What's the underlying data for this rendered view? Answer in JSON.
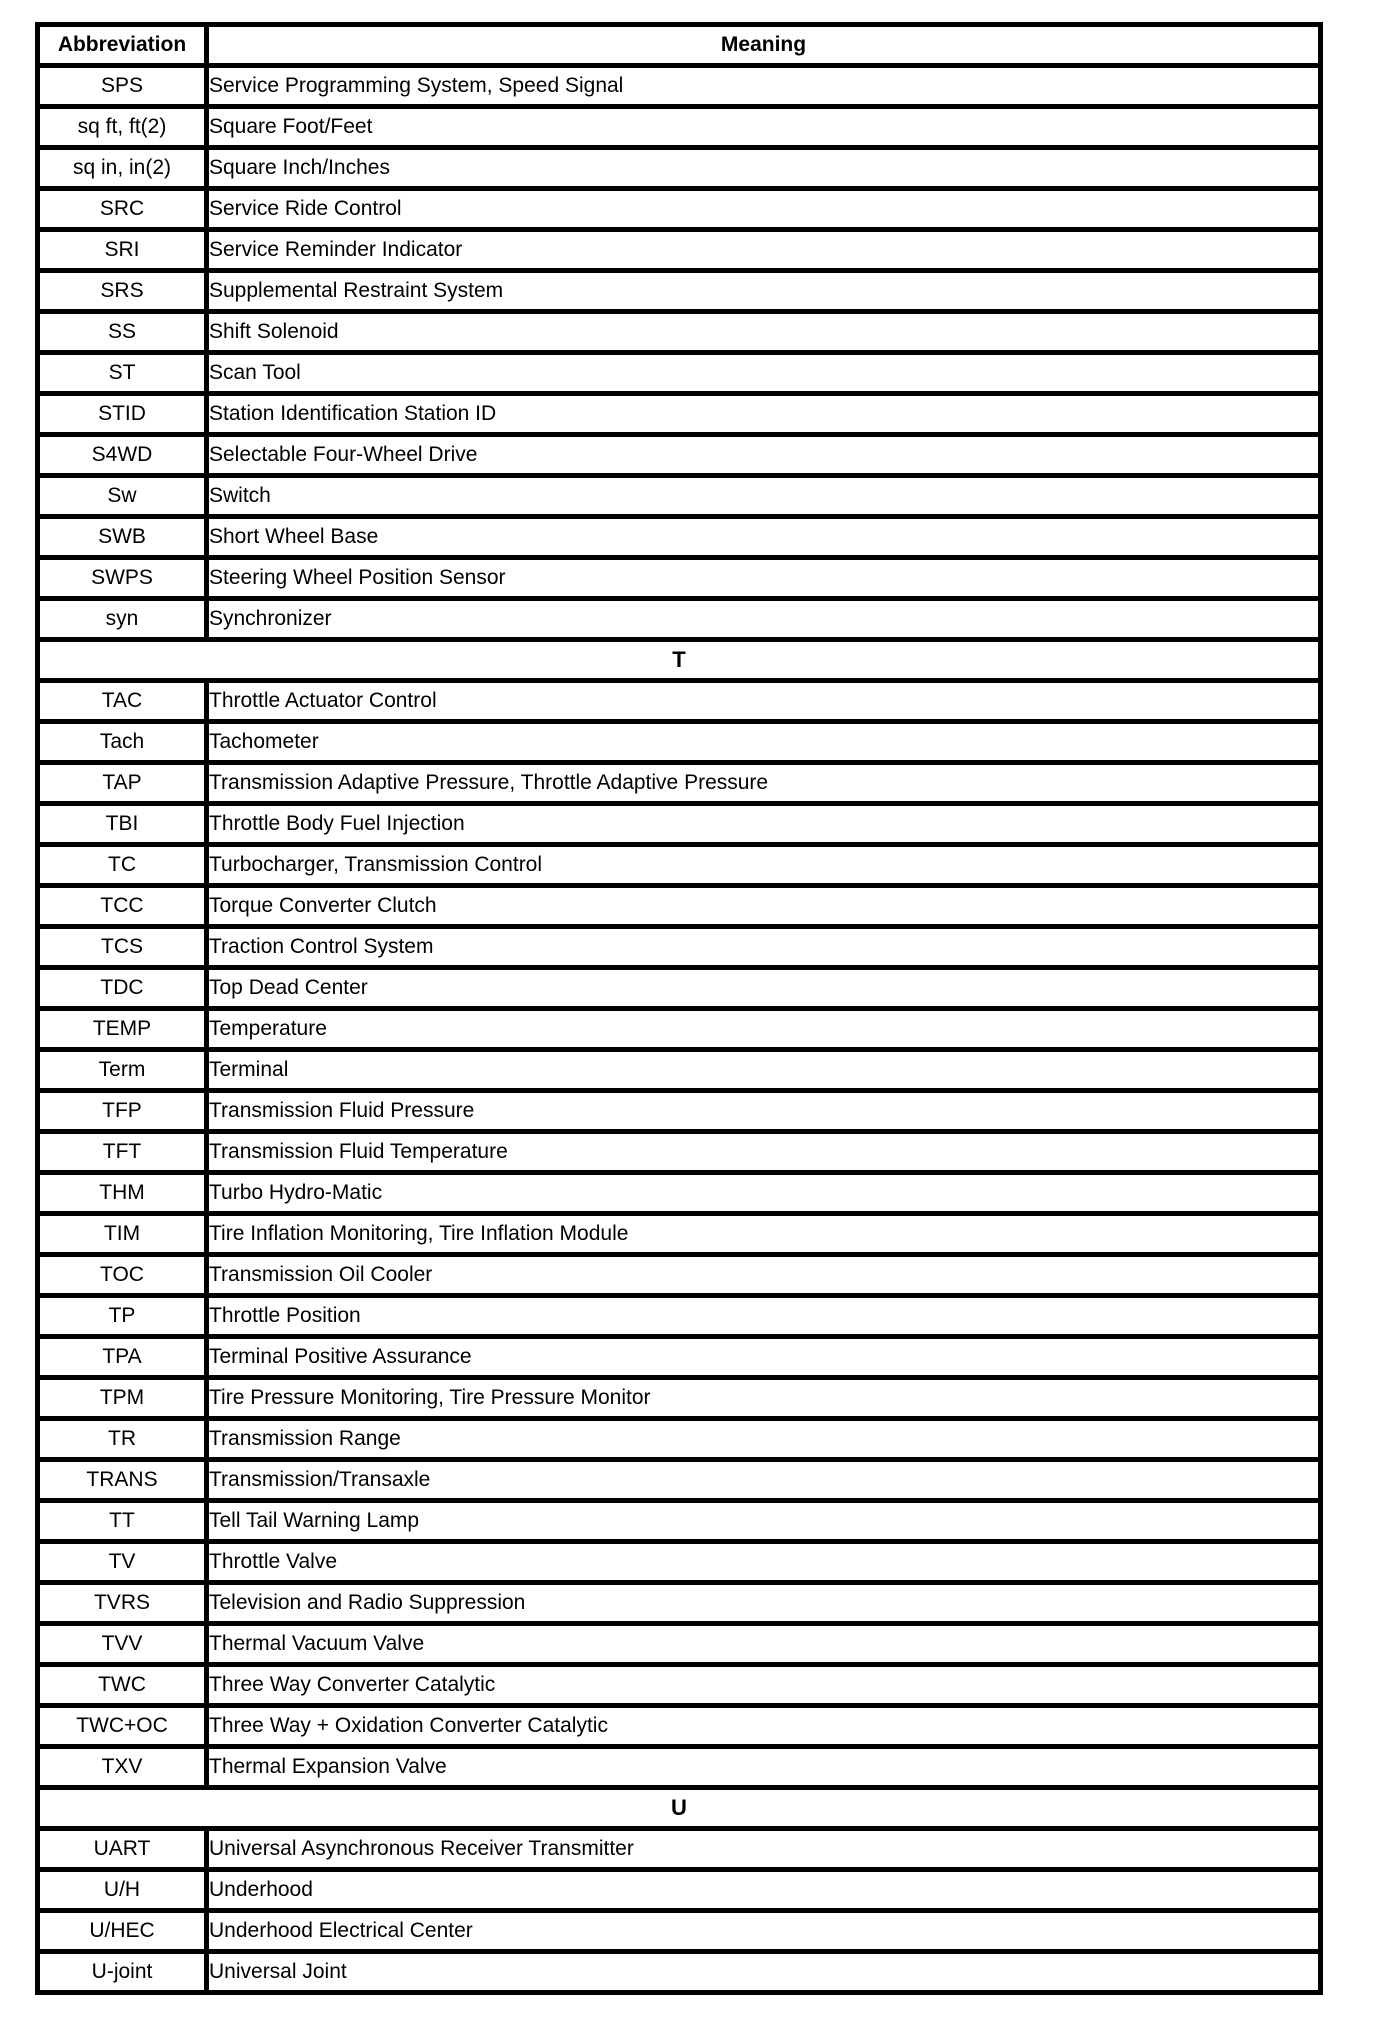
{
  "table": {
    "headers": {
      "abbreviation": "Abbreviation",
      "meaning": "Meaning"
    },
    "rows": [
      {
        "type": "entry",
        "abbr": "SPS",
        "meaning": "Service Programming System, Speed Signal"
      },
      {
        "type": "entry",
        "abbr": "sq ft, ft(2)",
        "meaning": "Square Foot/Feet"
      },
      {
        "type": "entry",
        "abbr": "sq in, in(2)",
        "meaning": "Square Inch/Inches"
      },
      {
        "type": "entry",
        "abbr": "SRC",
        "meaning": "Service Ride Control"
      },
      {
        "type": "entry",
        "abbr": "SRI",
        "meaning": "Service Reminder Indicator"
      },
      {
        "type": "entry",
        "abbr": "SRS",
        "meaning": "Supplemental Restraint System"
      },
      {
        "type": "entry",
        "abbr": "SS",
        "meaning": "Shift Solenoid"
      },
      {
        "type": "entry",
        "abbr": "ST",
        "meaning": "Scan Tool"
      },
      {
        "type": "entry",
        "abbr": "STID",
        "meaning": "Station Identification Station ID"
      },
      {
        "type": "entry",
        "abbr": "S4WD",
        "meaning": "Selectable Four-Wheel Drive"
      },
      {
        "type": "entry",
        "abbr": "Sw",
        "meaning": "Switch"
      },
      {
        "type": "entry",
        "abbr": "SWB",
        "meaning": "Short Wheel Base"
      },
      {
        "type": "entry",
        "abbr": "SWPS",
        "meaning": "Steering Wheel Position Sensor"
      },
      {
        "type": "entry",
        "abbr": "syn",
        "meaning": "Synchronizer"
      },
      {
        "type": "section",
        "letter": "T"
      },
      {
        "type": "entry",
        "abbr": "TAC",
        "meaning": "Throttle Actuator Control"
      },
      {
        "type": "entry",
        "abbr": "Tach",
        "meaning": "Tachometer"
      },
      {
        "type": "entry",
        "abbr": "TAP",
        "meaning": "Transmission Adaptive Pressure, Throttle Adaptive Pressure"
      },
      {
        "type": "entry",
        "abbr": "TBI",
        "meaning": "Throttle Body Fuel Injection"
      },
      {
        "type": "entry",
        "abbr": "TC",
        "meaning": "Turbocharger, Transmission Control"
      },
      {
        "type": "entry",
        "abbr": "TCC",
        "meaning": "Torque Converter Clutch"
      },
      {
        "type": "entry",
        "abbr": "TCS",
        "meaning": "Traction Control System"
      },
      {
        "type": "entry",
        "abbr": "TDC",
        "meaning": "Top Dead Center"
      },
      {
        "type": "entry",
        "abbr": "TEMP",
        "meaning": "Temperature"
      },
      {
        "type": "entry",
        "abbr": "Term",
        "meaning": "Terminal"
      },
      {
        "type": "entry",
        "abbr": "TFP",
        "meaning": "Transmission Fluid Pressure"
      },
      {
        "type": "entry",
        "abbr": "TFT",
        "meaning": "Transmission Fluid Temperature"
      },
      {
        "type": "entry",
        "abbr": "THM",
        "meaning": "Turbo Hydro-Matic"
      },
      {
        "type": "entry",
        "abbr": "TIM",
        "meaning": "Tire Inflation Monitoring, Tire Inflation Module"
      },
      {
        "type": "entry",
        "abbr": "TOC",
        "meaning": "Transmission Oil Cooler"
      },
      {
        "type": "entry",
        "abbr": "TP",
        "meaning": "Throttle Position"
      },
      {
        "type": "entry",
        "abbr": "TPA",
        "meaning": "Terminal Positive Assurance"
      },
      {
        "type": "entry",
        "abbr": "TPM",
        "meaning": "Tire Pressure Monitoring, Tire Pressure Monitor"
      },
      {
        "type": "entry",
        "abbr": "TR",
        "meaning": "Transmission Range"
      },
      {
        "type": "entry",
        "abbr": "TRANS",
        "meaning": "Transmission/Transaxle"
      },
      {
        "type": "entry",
        "abbr": "TT",
        "meaning": "Tell Tail Warning Lamp"
      },
      {
        "type": "entry",
        "abbr": "TV",
        "meaning": "Throttle Valve"
      },
      {
        "type": "entry",
        "abbr": "TVRS",
        "meaning": "Television and Radio Suppression"
      },
      {
        "type": "entry",
        "abbr": "TVV",
        "meaning": "Thermal Vacuum Valve"
      },
      {
        "type": "entry",
        "abbr": "TWC",
        "meaning": "Three Way Converter Catalytic"
      },
      {
        "type": "entry",
        "abbr": "TWC+OC",
        "meaning": "Three Way + Oxidation Converter Catalytic"
      },
      {
        "type": "entry",
        "abbr": "TXV",
        "meaning": "Thermal Expansion Valve"
      },
      {
        "type": "section",
        "letter": "U"
      },
      {
        "type": "entry",
        "abbr": "UART",
        "meaning": "Universal Asynchronous Receiver Transmitter"
      },
      {
        "type": "entry",
        "abbr": "U/H",
        "meaning": "Underhood"
      },
      {
        "type": "entry",
        "abbr": "U/HEC",
        "meaning": "Underhood Electrical Center"
      },
      {
        "type": "entry",
        "abbr": "U-joint",
        "meaning": "Universal Joint"
      }
    ]
  }
}
